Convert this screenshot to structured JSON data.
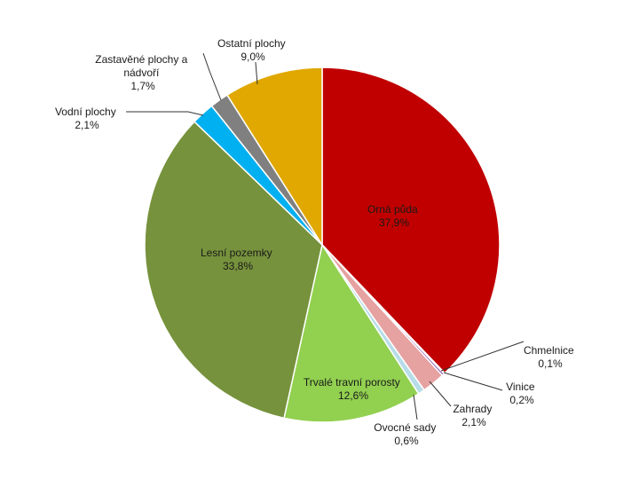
{
  "chart_data": {
    "type": "pie",
    "slices": [
      {
        "name": "Orná půda",
        "value": 37.9,
        "label": "37,9%",
        "color": "#c00000"
      },
      {
        "name": "Chmelnice",
        "value": 0.1,
        "label": "0,1%",
        "color": "#4b2c6e"
      },
      {
        "name": "Vinice",
        "value": 0.2,
        "label": "0,2%",
        "color": "#7030a0"
      },
      {
        "name": "Zahrady",
        "value": 2.1,
        "label": "2,1%",
        "color": "#e6a1a1"
      },
      {
        "name": "Ovocné sady",
        "value": 0.6,
        "label": "0,6%",
        "color": "#b7dde8"
      },
      {
        "name": "Trvalé travní porosty",
        "value": 12.6,
        "label": "12,6%",
        "color": "#92d050"
      },
      {
        "name": "Lesní pozemky",
        "value": 33.8,
        "label": "33,8%",
        "color": "#76923c"
      },
      {
        "name": "Vodní plochy",
        "value": 2.1,
        "label": "2,1%",
        "color": "#00b0f0"
      },
      {
        "name": "Zastavěné plochy a nádvoří",
        "value": 1.7,
        "label": "1,7%",
        "color": "#808080"
      },
      {
        "name": "Ostatní plochy",
        "value": 9.0,
        "label": "9,0%",
        "color": "#e0a800"
      }
    ]
  }
}
